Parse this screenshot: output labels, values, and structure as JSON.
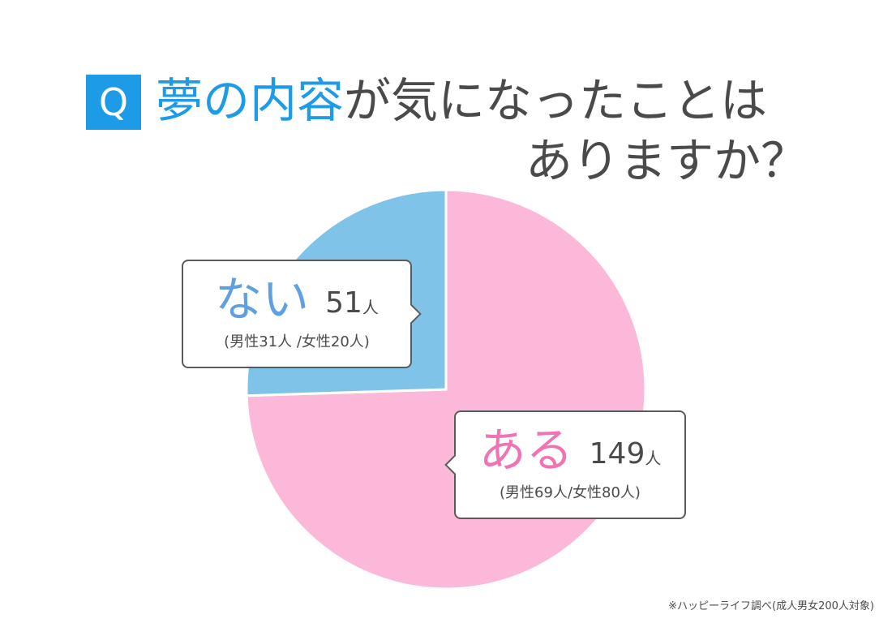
{
  "question": {
    "badge": "Q",
    "title_highlight": "夢の内容",
    "title_rest_line1": "が気になったことは",
    "title_line2": "ありますか？"
  },
  "chart_data": {
    "type": "pie",
    "title": "夢の内容が気になったことはありますか？",
    "start": "12 o'clock",
    "direction": "clockwise",
    "slices": [
      {
        "label": "ある",
        "value": 149,
        "unit": "人",
        "detail": "(男性69人/女性80人)",
        "color": "#fbb8d9"
      },
      {
        "label": "ない",
        "value": 51,
        "unit": "人",
        "detail": "(男性31人 /女性20人)",
        "color": "#7fc4e8"
      }
    ]
  },
  "labels": {
    "nai": {
      "word": "ない",
      "count": "51",
      "unit": "人",
      "detail": "(男性31人 /女性20人)"
    },
    "aru": {
      "word": "ある",
      "count": "149",
      "unit": "人",
      "detail": "(男性69人/女性80人)"
    }
  },
  "footnote": "※ハッピーライフ調べ(成人男女200人対象)",
  "colors": {
    "accent": "#1e9be6",
    "pie_aru": "#fbb8d9",
    "pie_nai": "#7fc4e8",
    "text": "#4a4a4a"
  }
}
